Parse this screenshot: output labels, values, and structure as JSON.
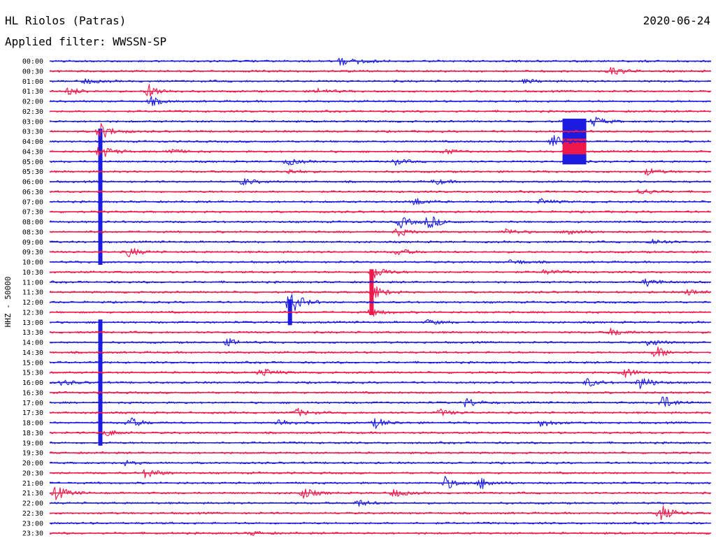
{
  "header": {
    "station": "HL Riolos (Patras)",
    "date": "2020-06-24",
    "filter": "Applied filter: WWSSN-SP",
    "channel": "HHZ - 50000"
  },
  "colors": {
    "blue": "#1c1ce0",
    "red": "#f0184a",
    "text": "#000000",
    "background": "#ffffff"
  },
  "chart_data": {
    "type": "line",
    "title": "HL Riolos (Patras)",
    "subtitle": "Applied filter: WWSSN-SP",
    "date": "2020-06-24",
    "ylabel": "HHZ - 50000",
    "xlim": [
      0,
      30
    ],
    "grid": false,
    "legend": "none",
    "series_colors": [
      "#1c1ce0",
      "#f0184a"
    ],
    "rows": [
      {
        "time": "00:00",
        "color": "blue",
        "events": [
          {
            "t": 13.2,
            "amp": 6
          },
          {
            "t": 14.0,
            "amp": 4
          }
        ]
      },
      {
        "time": "00:30",
        "color": "red",
        "events": [
          {
            "t": 25.5,
            "amp": 7
          }
        ]
      },
      {
        "time": "01:00",
        "color": "blue",
        "events": [
          {
            "t": 1.6,
            "amp": 4
          },
          {
            "t": 21.6,
            "amp": 3
          }
        ]
      },
      {
        "time": "01:30",
        "color": "red",
        "events": [
          {
            "t": 0.9,
            "amp": 6
          },
          {
            "t": 4.5,
            "amp": 10
          },
          {
            "t": 12.2,
            "amp": 4
          }
        ]
      },
      {
        "time": "02:00",
        "color": "blue",
        "events": [
          {
            "t": 4.6,
            "amp": 6
          }
        ]
      },
      {
        "time": "02:30",
        "color": "red",
        "events": []
      },
      {
        "time": "03:00",
        "color": "blue",
        "events": [
          {
            "t": 24.7,
            "amp": 7
          }
        ]
      },
      {
        "time": "03:30",
        "color": "red",
        "events": [
          {
            "t": 2.3,
            "amp": 12
          }
        ]
      },
      {
        "time": "04:00",
        "color": "blue",
        "events": [
          {
            "t": 22.8,
            "amp": 10
          }
        ]
      },
      {
        "time": "04:30",
        "color": "red",
        "events": [
          {
            "t": 2.3,
            "amp": 10
          },
          {
            "t": 5.4,
            "amp": 5
          },
          {
            "t": 17.9,
            "amp": 4
          }
        ]
      },
      {
        "time": "05:00",
        "color": "blue",
        "events": [
          {
            "t": 10.8,
            "amp": 5
          },
          {
            "t": 15.6,
            "amp": 5
          }
        ]
      },
      {
        "time": "05:30",
        "color": "red",
        "events": [
          {
            "t": 10.8,
            "amp": 4
          },
          {
            "t": 27.1,
            "amp": 5
          }
        ]
      },
      {
        "time": "06:00",
        "color": "blue",
        "events": [
          {
            "t": 8.8,
            "amp": 5
          },
          {
            "t": 17.5,
            "amp": 4
          }
        ]
      },
      {
        "time": "06:30",
        "color": "red",
        "events": [
          {
            "t": 26.8,
            "amp": 5
          }
        ]
      },
      {
        "time": "07:00",
        "color": "blue",
        "events": [
          {
            "t": 16.5,
            "amp": 6
          },
          {
            "t": 22.3,
            "amp": 4
          }
        ]
      },
      {
        "time": "07:30",
        "color": "red",
        "events": []
      },
      {
        "time": "08:00",
        "color": "blue",
        "events": [
          {
            "t": 15.9,
            "amp": 8
          },
          {
            "t": 17.2,
            "amp": 10
          }
        ]
      },
      {
        "time": "08:30",
        "color": "red",
        "events": [
          {
            "t": 15.8,
            "amp": 6
          },
          {
            "t": 20.7,
            "amp": 5
          },
          {
            "t": 23.5,
            "amp": 6
          }
        ]
      },
      {
        "time": "09:00",
        "color": "blue",
        "events": [
          {
            "t": 27.3,
            "amp": 5
          }
        ]
      },
      {
        "time": "09:30",
        "color": "red",
        "events": [
          {
            "t": 3.6,
            "amp": 7
          },
          {
            "t": 15.8,
            "amp": 5
          }
        ]
      },
      {
        "time": "10:00",
        "color": "blue",
        "events": [
          {
            "t": 21.0,
            "amp": 4
          }
        ]
      },
      {
        "time": "10:30",
        "color": "red",
        "events": [
          {
            "t": 14.7,
            "amp": 10
          },
          {
            "t": 22.5,
            "amp": 4
          }
        ]
      },
      {
        "time": "11:00",
        "color": "blue",
        "events": [
          {
            "t": 27.1,
            "amp": 6
          }
        ]
      },
      {
        "time": "11:30",
        "color": "red",
        "events": [
          {
            "t": 14.6,
            "amp": 12
          },
          {
            "t": 29.0,
            "amp": 5
          }
        ]
      },
      {
        "time": "12:00",
        "color": "blue",
        "events": [
          {
            "t": 10.9,
            "amp": 18
          }
        ]
      },
      {
        "time": "12:30",
        "color": "red",
        "events": [
          {
            "t": 14.6,
            "amp": 6
          }
        ]
      },
      {
        "time": "13:00",
        "color": "blue",
        "events": [
          {
            "t": 17.2,
            "amp": 4
          }
        ]
      },
      {
        "time": "13:30",
        "color": "red",
        "events": [
          {
            "t": 25.5,
            "amp": 6
          }
        ]
      },
      {
        "time": "14:00",
        "color": "blue",
        "events": [
          {
            "t": 8.1,
            "amp": 5
          },
          {
            "t": 27.2,
            "amp": 5
          }
        ]
      },
      {
        "time": "14:30",
        "color": "red",
        "events": [
          {
            "t": 27.5,
            "amp": 9
          }
        ]
      },
      {
        "time": "15:00",
        "color": "blue",
        "events": []
      },
      {
        "time": "15:30",
        "color": "red",
        "events": [
          {
            "t": 9.6,
            "amp": 7
          },
          {
            "t": 26.0,
            "amp": 8
          }
        ]
      },
      {
        "time": "16:00",
        "color": "blue",
        "events": [
          {
            "t": 0.6,
            "amp": 4
          },
          {
            "t": 24.4,
            "amp": 6
          },
          {
            "t": 26.8,
            "amp": 10
          }
        ]
      },
      {
        "time": "16:30",
        "color": "red",
        "events": []
      },
      {
        "time": "17:00",
        "color": "blue",
        "events": [
          {
            "t": 18.9,
            "amp": 7
          },
          {
            "t": 27.8,
            "amp": 10
          }
        ]
      },
      {
        "time": "17:30",
        "color": "red",
        "events": [
          {
            "t": 11.2,
            "amp": 6
          },
          {
            "t": 17.7,
            "amp": 5
          }
        ]
      },
      {
        "time": "18:00",
        "color": "blue",
        "events": [
          {
            "t": 3.6,
            "amp": 8
          },
          {
            "t": 10.4,
            "amp": 6
          },
          {
            "t": 14.8,
            "amp": 7
          },
          {
            "t": 22.3,
            "amp": 6
          }
        ]
      },
      {
        "time": "18:30",
        "color": "red",
        "events": [
          {
            "t": 2.6,
            "amp": 5
          }
        ]
      },
      {
        "time": "19:00",
        "color": "blue",
        "events": []
      },
      {
        "time": "19:30",
        "color": "red",
        "events": []
      },
      {
        "time": "20:00",
        "color": "blue",
        "events": [
          {
            "t": 3.4,
            "amp": 3
          }
        ]
      },
      {
        "time": "20:30",
        "color": "red",
        "events": [
          {
            "t": 4.4,
            "amp": 8
          }
        ]
      },
      {
        "time": "21:00",
        "color": "blue",
        "events": [
          {
            "t": 17.9,
            "amp": 10
          },
          {
            "t": 19.6,
            "amp": 8
          }
        ]
      },
      {
        "time": "21:30",
        "color": "red",
        "events": [
          {
            "t": 0.3,
            "amp": 10
          },
          {
            "t": 11.5,
            "amp": 8
          },
          {
            "t": 15.6,
            "amp": 6
          }
        ]
      },
      {
        "time": "22:00",
        "color": "blue",
        "events": [
          {
            "t": 14.0,
            "amp": 5
          }
        ]
      },
      {
        "time": "22:30",
        "color": "red",
        "events": [
          {
            "t": 27.7,
            "amp": 12
          }
        ]
      },
      {
        "time": "23:00",
        "color": "blue",
        "events": []
      },
      {
        "time": "23:30",
        "color": "red",
        "events": [
          {
            "t": 9.2,
            "amp": 3
          }
        ]
      }
    ],
    "clipped_bursts": [
      {
        "start": "03:30",
        "end": "10:00",
        "t": 2.3,
        "color": "blue"
      },
      {
        "start": "13:00",
        "end": "19:00",
        "t": 2.3,
        "color": "blue"
      },
      {
        "start": "03:00",
        "end": "05:00",
        "t": 23.8,
        "color": "blue"
      },
      {
        "start": "04:00",
        "end": "04:30",
        "t": 23.8,
        "color": "red"
      },
      {
        "start": "12:00",
        "end": "13:00",
        "t": 10.9,
        "color": "blue"
      },
      {
        "start": "10:30",
        "end": "12:30",
        "t": 14.6,
        "color": "red"
      }
    ]
  }
}
